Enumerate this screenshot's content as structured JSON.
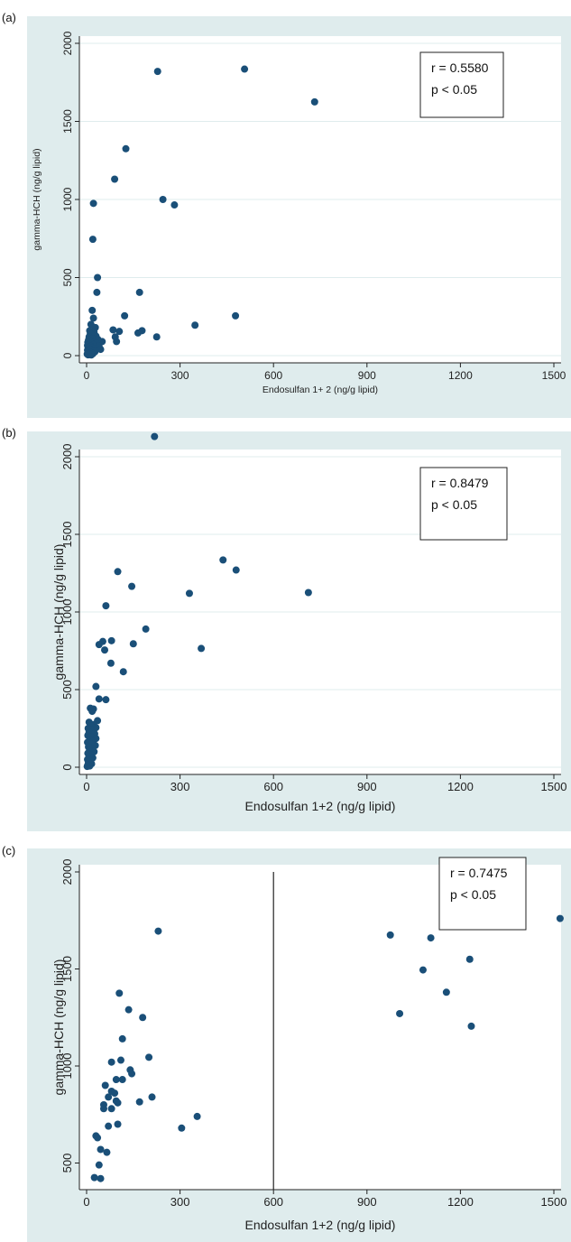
{
  "chart_data": [
    {
      "panel_label": "(a)",
      "type": "scatter",
      "xlabel": "Endosulfan 1+ 2 (ng/g lipid)",
      "ylabel": "gamma-HCH (ng/g lipid)",
      "xlim": [
        0,
        1500
      ],
      "ylim": [
        0,
        2000
      ],
      "xticks": [
        0,
        300,
        600,
        900,
        1200,
        1500
      ],
      "yticks": [
        0,
        500,
        1000,
        1500,
        2000
      ],
      "grid": true,
      "annotation": [
        "r = 0.5580",
        "p < 0.05"
      ],
      "points": [
        [
          228,
          1820
        ],
        [
          507,
          1835
        ],
        [
          732,
          1625
        ],
        [
          126,
          1325
        ],
        [
          90,
          1130
        ],
        [
          22,
          975
        ],
        [
          245,
          1000
        ],
        [
          282,
          965
        ],
        [
          20,
          745
        ],
        [
          35,
          500
        ],
        [
          33,
          405
        ],
        [
          170,
          405
        ],
        [
          348,
          195
        ],
        [
          478,
          255
        ],
        [
          225,
          120
        ],
        [
          122,
          255
        ],
        [
          85,
          165
        ],
        [
          92,
          120
        ],
        [
          105,
          155
        ],
        [
          165,
          145
        ],
        [
          178,
          160
        ],
        [
          96,
          90
        ],
        [
          50,
          90
        ],
        [
          18,
          290
        ],
        [
          22,
          240
        ],
        [
          14,
          200
        ],
        [
          28,
          180
        ],
        [
          10,
          160
        ],
        [
          24,
          150
        ],
        [
          12,
          140
        ],
        [
          30,
          125
        ],
        [
          8,
          120
        ],
        [
          18,
          110
        ],
        [
          36,
          105
        ],
        [
          6,
          100
        ],
        [
          16,
          95
        ],
        [
          26,
          90
        ],
        [
          4,
          85
        ],
        [
          14,
          80
        ],
        [
          32,
          78
        ],
        [
          10,
          72
        ],
        [
          22,
          70
        ],
        [
          3,
          65
        ],
        [
          13,
          60
        ],
        [
          28,
          58
        ],
        [
          8,
          55
        ],
        [
          18,
          50
        ],
        [
          5,
          45
        ],
        [
          24,
          44
        ],
        [
          12,
          40
        ],
        [
          3,
          35
        ],
        [
          17,
          32
        ],
        [
          8,
          28
        ],
        [
          27,
          25
        ],
        [
          4,
          22
        ],
        [
          14,
          18
        ],
        [
          6,
          14
        ],
        [
          20,
          12
        ],
        [
          2,
          10
        ],
        [
          10,
          8
        ],
        [
          5,
          5
        ],
        [
          15,
          4
        ],
        [
          40,
          60
        ],
        [
          45,
          40
        ]
      ]
    },
    {
      "panel_label": "(b)",
      "type": "scatter",
      "xlabel": "Endosulfan 1+2 (ng/g lipid)",
      "ylabel": "gamma-HCH (ng/g lipid)",
      "xlim": [
        0,
        1500
      ],
      "ylim": [
        0,
        2000
      ],
      "xticks": [
        0,
        300,
        600,
        900,
        1200,
        1500
      ],
      "yticks": [
        0,
        500,
        1000,
        1500,
        2000
      ],
      "grid": true,
      "annotation": [
        "r = 0.8479",
        "p < 0.05"
      ],
      "points": [
        [
          218,
          2130
        ],
        [
          438,
          1335
        ],
        [
          480,
          1270
        ],
        [
          100,
          1260
        ],
        [
          145,
          1165
        ],
        [
          330,
          1120
        ],
        [
          712,
          1125
        ],
        [
          62,
          1040
        ],
        [
          190,
          890
        ],
        [
          80,
          815
        ],
        [
          52,
          810
        ],
        [
          40,
          790
        ],
        [
          150,
          795
        ],
        [
          368,
          765
        ],
        [
          58,
          755
        ],
        [
          118,
          615
        ],
        [
          78,
          670
        ],
        [
          30,
          520
        ],
        [
          40,
          440
        ],
        [
          62,
          435
        ],
        [
          22,
          375
        ],
        [
          12,
          380
        ],
        [
          18,
          360
        ],
        [
          35,
          300
        ],
        [
          8,
          290
        ],
        [
          22,
          275
        ],
        [
          14,
          265
        ],
        [
          30,
          255
        ],
        [
          5,
          250
        ],
        [
          18,
          240
        ],
        [
          8,
          225
        ],
        [
          26,
          215
        ],
        [
          4,
          205
        ],
        [
          14,
          195
        ],
        [
          30,
          185
        ],
        [
          10,
          175
        ],
        [
          20,
          165
        ],
        [
          3,
          160
        ],
        [
          14,
          150
        ],
        [
          28,
          140
        ],
        [
          6,
          130
        ],
        [
          18,
          120
        ],
        [
          10,
          110
        ],
        [
          24,
          100
        ],
        [
          4,
          90
        ],
        [
          14,
          80
        ],
        [
          8,
          70
        ],
        [
          20,
          60
        ],
        [
          3,
          50
        ],
        [
          12,
          40
        ],
        [
          6,
          30
        ],
        [
          16,
          22
        ],
        [
          4,
          15
        ],
        [
          10,
          8
        ],
        [
          2,
          5
        ]
      ]
    },
    {
      "panel_label": "(c)",
      "type": "scatter",
      "xlabel": "Endosulfan 1+2 (ng/g lipid)",
      "ylabel": "gamma-HCH (ng/g lipid)",
      "xlim": [
        0,
        1500
      ],
      "ylim": [
        400,
        2000
      ],
      "xticks": [
        0,
        300,
        600,
        900,
        1200,
        1500
      ],
      "yticks": [
        500,
        1000,
        1500,
        2000
      ],
      "grid": false,
      "vline_x": 600,
      "annotation": [
        "r = 0.7475",
        "p < 0.05"
      ],
      "points": [
        [
          230,
          1695
        ],
        [
          1520,
          1760
        ],
        [
          975,
          1675
        ],
        [
          1105,
          1660
        ],
        [
          1230,
          1550
        ],
        [
          1080,
          1495
        ],
        [
          1155,
          1380
        ],
        [
          1005,
          1270
        ],
        [
          1235,
          1205
        ],
        [
          105,
          1375
        ],
        [
          135,
          1290
        ],
        [
          180,
          1250
        ],
        [
          115,
          1140
        ],
        [
          200,
          1045
        ],
        [
          80,
          1020
        ],
        [
          110,
          1030
        ],
        [
          140,
          980
        ],
        [
          145,
          960
        ],
        [
          95,
          930
        ],
        [
          115,
          930
        ],
        [
          60,
          900
        ],
        [
          80,
          870
        ],
        [
          90,
          860
        ],
        [
          70,
          840
        ],
        [
          95,
          820
        ],
        [
          100,
          810
        ],
        [
          210,
          840
        ],
        [
          170,
          815
        ],
        [
          80,
          780
        ],
        [
          55,
          800
        ],
        [
          55,
          780
        ],
        [
          355,
          740
        ],
        [
          100,
          700
        ],
        [
          70,
          690
        ],
        [
          305,
          680
        ],
        [
          30,
          640
        ],
        [
          35,
          630
        ],
        [
          45,
          570
        ],
        [
          65,
          555
        ],
        [
          40,
          490
        ],
        [
          25,
          425
        ],
        [
          45,
          420
        ]
      ]
    }
  ]
}
